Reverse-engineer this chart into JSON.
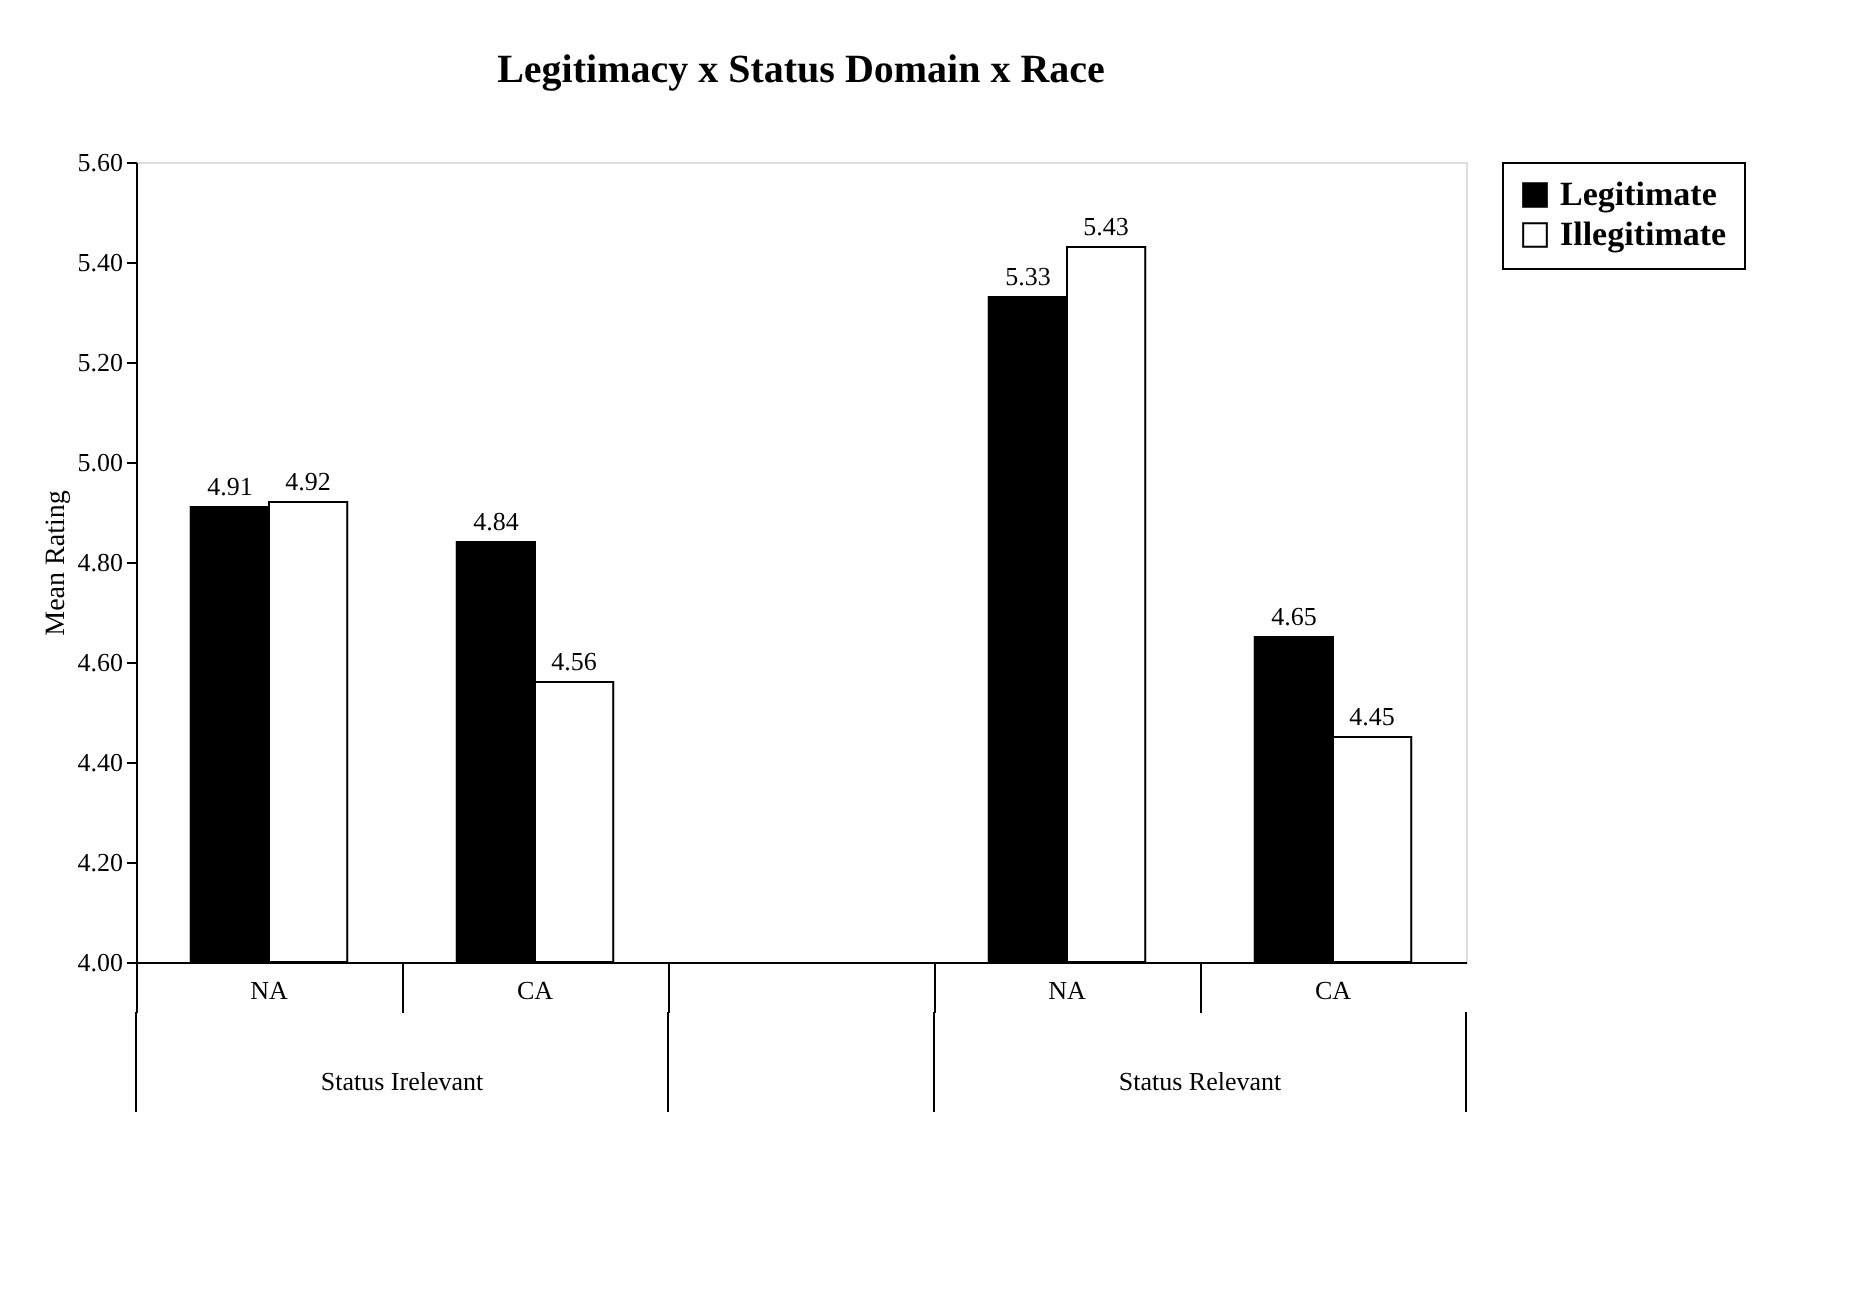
{
  "chart_data": {
    "type": "bar",
    "title": "Legitimacy x Status Domain x Race",
    "ylabel": "Mean Rating",
    "categories": [
      "NA",
      "CA",
      null,
      "NA",
      "CA"
    ],
    "series": [
      {
        "name": "Legitimate",
        "color": "#000000",
        "values": [
          4.91,
          4.84,
          null,
          5.33,
          4.65
        ]
      },
      {
        "name": "Illegitimate",
        "color": "#ffffff",
        "values": [
          4.92,
          4.56,
          null,
          5.43,
          4.45
        ]
      }
    ],
    "ylim": [
      4.0,
      5.6
    ],
    "yticks": [
      {
        "value": 4.0,
        "label": "4.00"
      },
      {
        "value": 4.2,
        "label": "4.20"
      },
      {
        "value": 4.4,
        "label": "4.40"
      },
      {
        "value": 4.6,
        "label": "4.60"
      },
      {
        "value": 4.8,
        "label": "4.80"
      },
      {
        "value": 5.0,
        "label": "5.00"
      },
      {
        "value": 5.2,
        "label": "5.20"
      },
      {
        "value": 5.4,
        "label": "5.40"
      },
      {
        "value": 5.6,
        "label": "5.60"
      }
    ],
    "annotations": [
      "Status Irelevant",
      "Status Relevant"
    ],
    "data_labels": true,
    "legend": "top right",
    "grid": false
  }
}
